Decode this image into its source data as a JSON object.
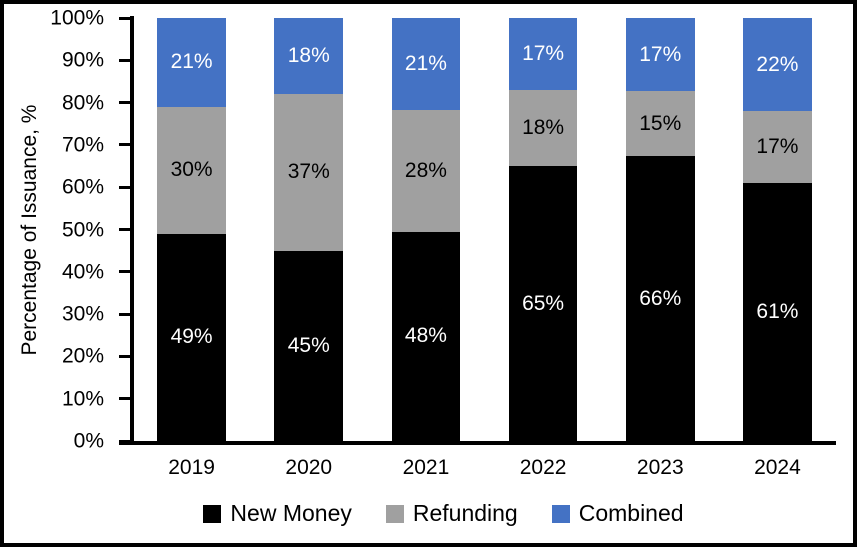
{
  "figure": {
    "background": "#ffffff",
    "border_color": "#000000"
  },
  "chart_data": {
    "type": "bar",
    "stacked": true,
    "title": "",
    "xlabel": "",
    "ylabel": "Percentage of Issuance, %",
    "categories": [
      "2019",
      "2020",
      "2021",
      "2022",
      "2023",
      "2024"
    ],
    "series": [
      {
        "name": "New Money",
        "color": "#000000",
        "label_color": "#ffffff",
        "values": [
          49,
          45,
          48,
          65,
          66,
          61
        ]
      },
      {
        "name": "Refunding",
        "color": "#a0a0a0",
        "label_color": "#000000",
        "values": [
          30,
          37,
          28,
          18,
          15,
          17
        ]
      },
      {
        "name": "Combined",
        "color": "#4472c4",
        "label_color": "#ffffff",
        "values": [
          21,
          18,
          21,
          17,
          17,
          22
        ]
      }
    ],
    "data_label_suffix": "%",
    "y_ticks": [
      "0%",
      "10%",
      "20%",
      "30%",
      "40%",
      "50%",
      "60%",
      "70%",
      "80%",
      "90%",
      "100%"
    ],
    "ylim": [
      0,
      100
    ],
    "grid": false,
    "legend_position": "bottom"
  }
}
